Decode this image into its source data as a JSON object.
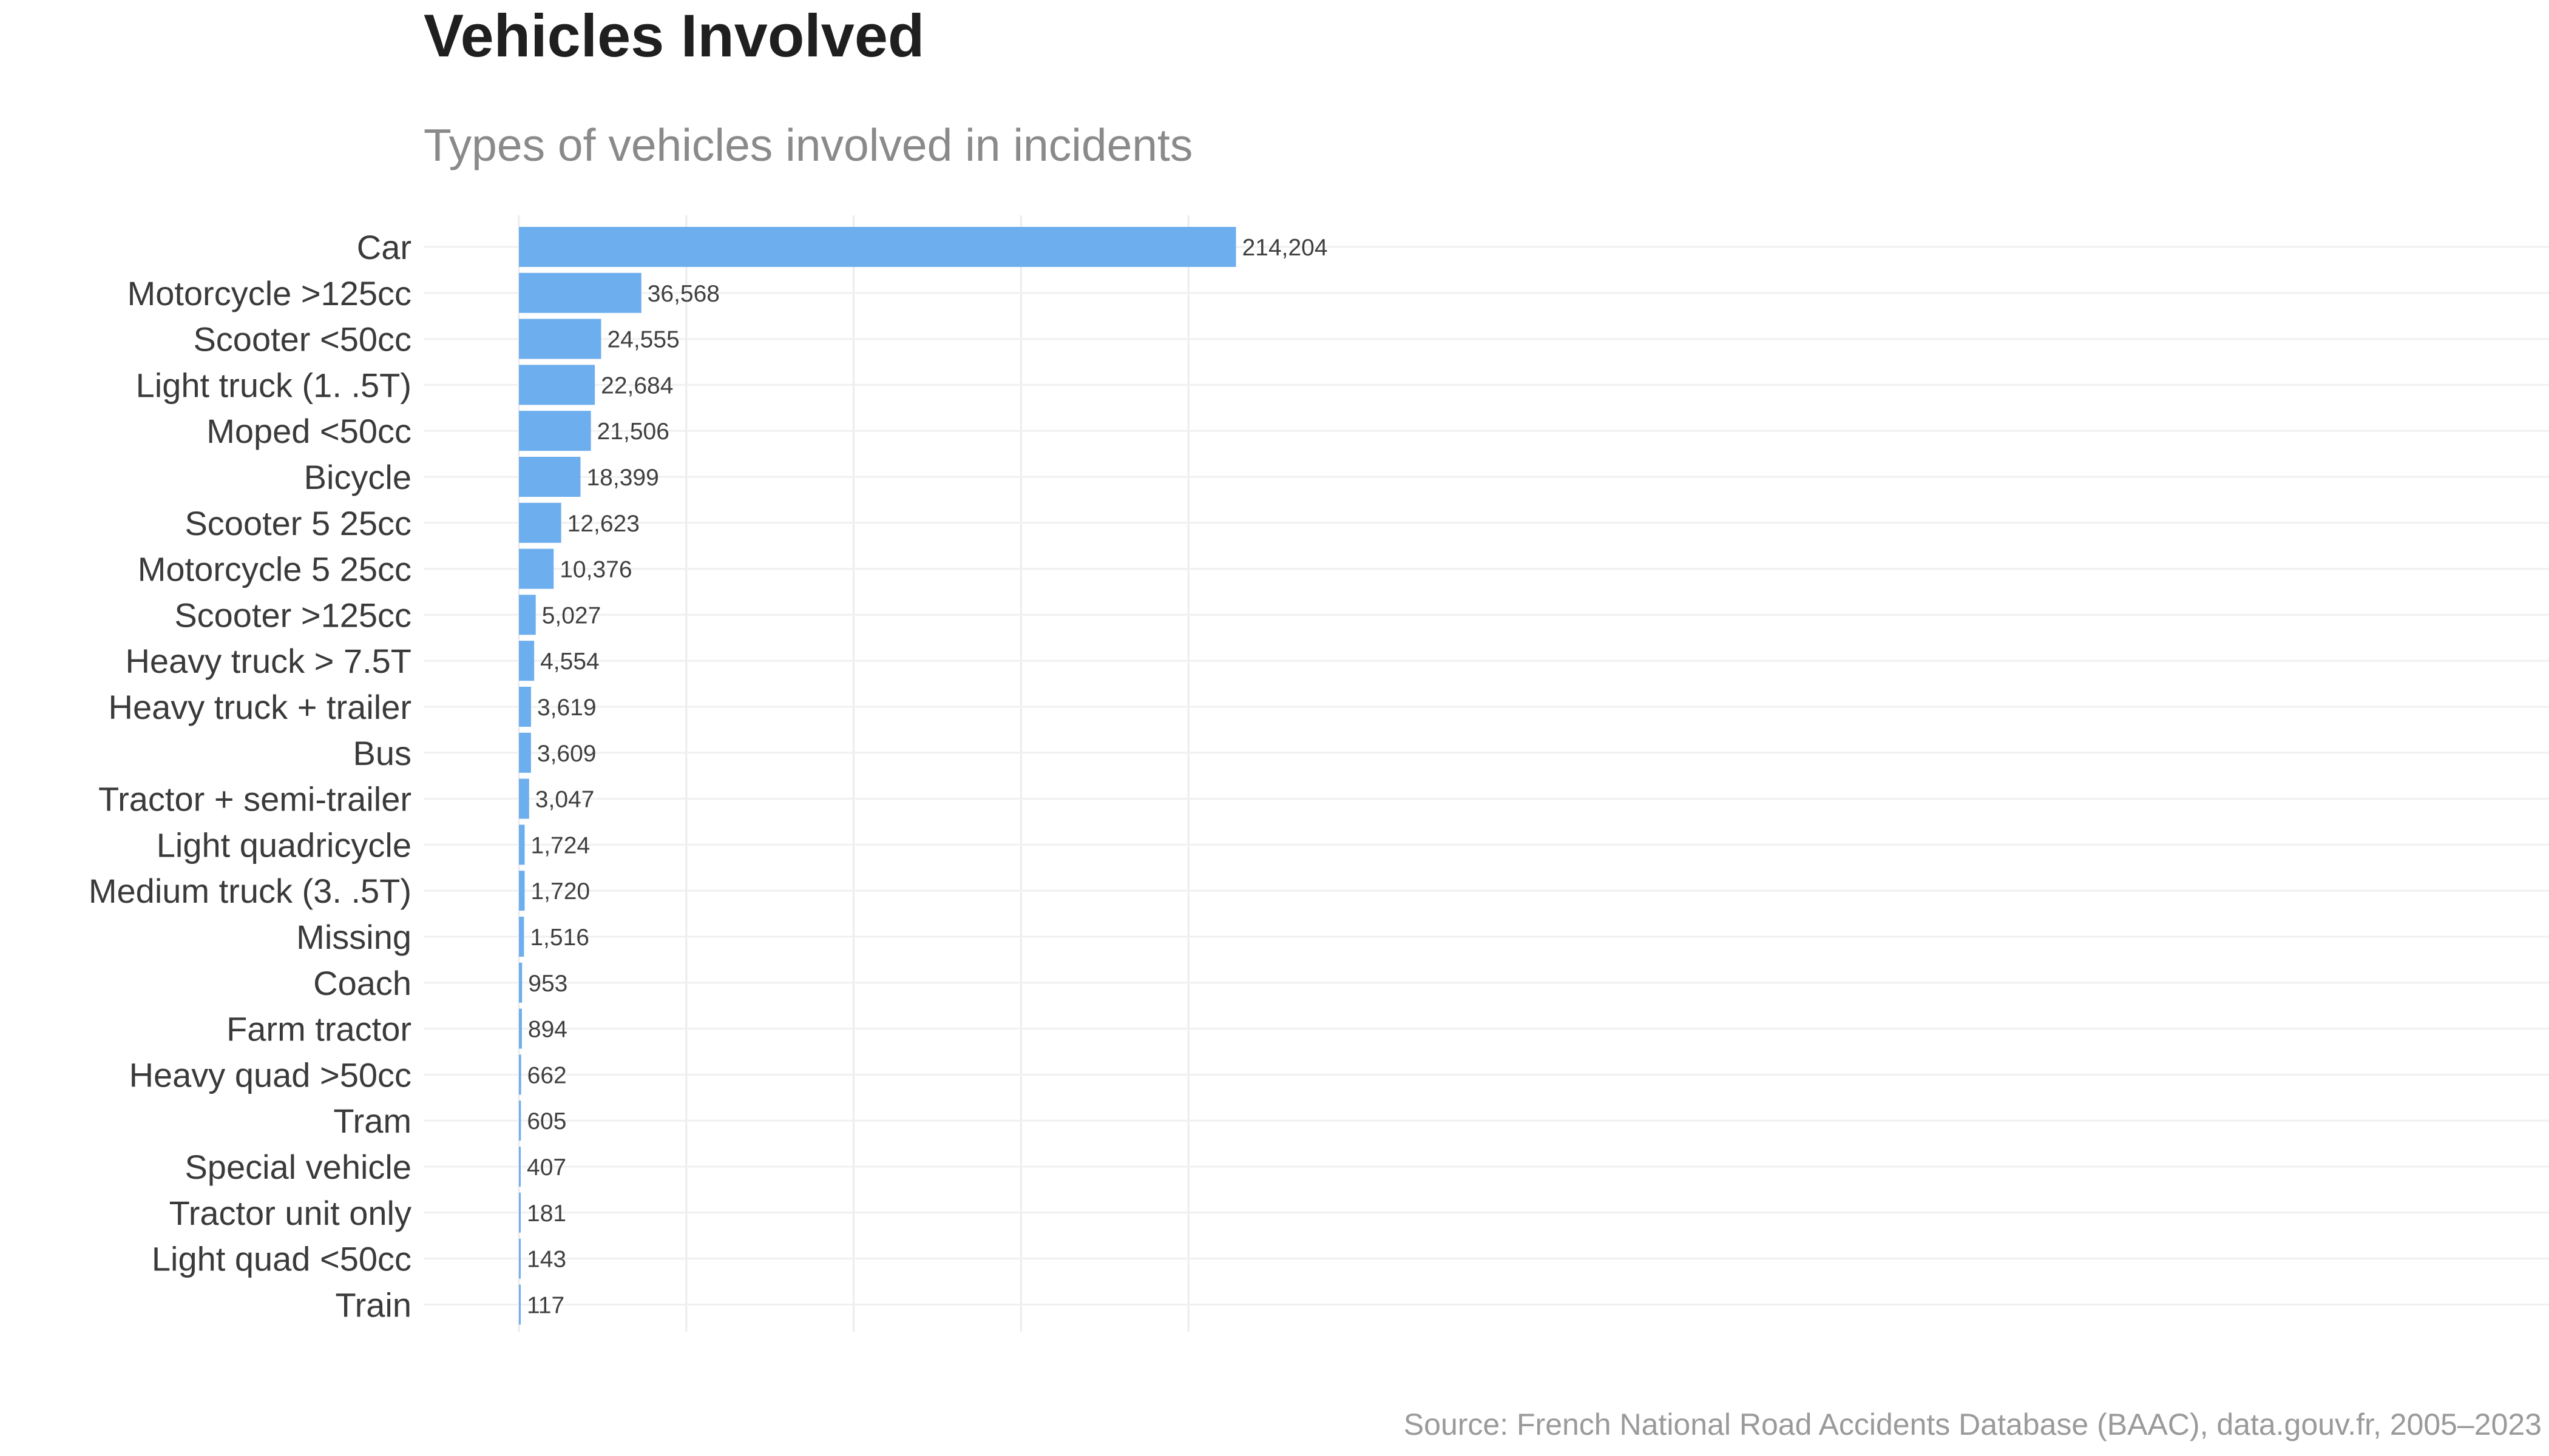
{
  "chart_data": {
    "type": "bar",
    "orientation": "horizontal",
    "title": "Vehicles Involved",
    "subtitle": "Types of vehicles involved in incidents",
    "caption": "Source: French National Road Accidents Database (BAAC), data.gouv.fr, 2005–2023",
    "xlabel": "",
    "ylabel": "",
    "xlim": [
      0,
      225000
    ],
    "grid": true,
    "legend": "none",
    "bar_color": "#6daeee",
    "categories": [
      "Car",
      "Motorcycle >125cc",
      "Scooter <50cc",
      "Light truck (1.  .5T)",
      "Moped <50cc",
      "Bicycle",
      "Scooter 5  25cc",
      "Motorcycle 5  25cc",
      "Scooter >125cc",
      "Heavy truck > 7.5T",
      "Heavy truck + trailer",
      "Bus",
      "Tractor + semi-trailer",
      "Light quadricycle",
      "Medium truck (3.  .5T)",
      "Missing",
      "Coach",
      "Farm tractor",
      "Heavy quad >50cc",
      "Tram",
      "Special vehicle",
      "Tractor unit only",
      "Light quad <50cc",
      "Train"
    ],
    "values": [
      214204,
      36568,
      24555,
      22684,
      21506,
      18399,
      12623,
      10376,
      5027,
      4554,
      3619,
      3609,
      3047,
      1724,
      1720,
      1516,
      953,
      894,
      662,
      605,
      407,
      181,
      143,
      117
    ],
    "value_labels": [
      "214,204",
      "36,568",
      "24,555",
      "22,684",
      "21,506",
      "18,399",
      "12,623",
      "10,376",
      "5,027",
      "4,554",
      "3,619",
      "3,609",
      "3,047",
      "1,724",
      "1,720",
      "1,516",
      "953",
      "894",
      "662",
      "605",
      "407",
      "181",
      "143",
      "117"
    ]
  }
}
